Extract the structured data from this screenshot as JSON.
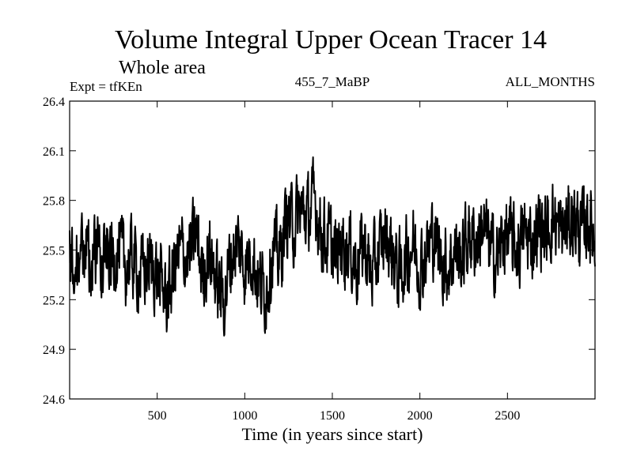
{
  "chart_data": {
    "type": "line",
    "title": "Volume Integral Upper Ocean Tracer 14",
    "subtitle": "Whole area",
    "expt_label": "Expt = tfKEn",
    "center_label": "455_7_MaBP",
    "right_label": "ALL_MONTHS",
    "xlabel": "Time (in years since start)",
    "ylabel": "",
    "xlim": [
      0,
      3000
    ],
    "ylim": [
      24.6,
      26.4
    ],
    "x_ticks": [
      500,
      1000,
      1500,
      2000,
      2500
    ],
    "y_ticks": [
      24.6,
      24.9,
      25.2,
      25.5,
      25.8,
      26.1,
      26.4
    ],
    "y_tick_labels": [
      "24.6",
      "24.9",
      "25.2",
      "25.5",
      "25.8",
      "26.1",
      "26.4"
    ],
    "grid": false,
    "legend": "none",
    "series": [
      {
        "color": "#000000",
        "x": [
          0,
          40,
          80,
          120,
          160,
          200,
          240,
          280,
          320,
          360,
          400,
          440,
          480,
          520,
          560,
          600,
          640,
          680,
          720,
          760,
          800,
          840,
          880,
          920,
          960,
          1000,
          1040,
          1080,
          1120,
          1160,
          1200,
          1240,
          1280,
          1320,
          1360,
          1400,
          1440,
          1480,
          1520,
          1560,
          1600,
          1640,
          1680,
          1720,
          1760,
          1800,
          1840,
          1880,
          1920,
          1960,
          2000,
          2040,
          2080,
          2120,
          2160,
          2200,
          2240,
          2280,
          2320,
          2360,
          2400,
          2440,
          2480,
          2520,
          2560,
          2600,
          2640,
          2680,
          2720,
          2760,
          2800,
          2840,
          2880,
          2920,
          2960,
          3000
        ],
        "y": [
          25.55,
          25.45,
          25.5,
          25.4,
          25.55,
          25.5,
          25.45,
          25.5,
          25.4,
          25.45,
          25.35,
          25.4,
          25.4,
          25.3,
          25.2,
          25.4,
          25.5,
          25.45,
          25.6,
          25.35,
          25.5,
          25.3,
          25.2,
          25.45,
          25.55,
          25.4,
          25.5,
          25.3,
          25.25,
          25.5,
          25.45,
          25.7,
          25.65,
          25.75,
          25.7,
          25.8,
          25.6,
          25.55,
          25.45,
          25.55,
          25.5,
          25.4,
          25.55,
          25.35,
          25.45,
          25.6,
          25.5,
          25.35,
          25.45,
          25.55,
          25.4,
          25.5,
          25.6,
          25.45,
          25.4,
          25.5,
          25.45,
          25.6,
          25.55,
          25.65,
          25.5,
          25.45,
          25.6,
          25.55,
          25.5,
          25.6,
          25.55,
          25.65,
          25.6,
          25.7,
          25.6,
          25.65,
          25.7,
          25.6,
          25.7,
          25.55
        ],
        "noise_amplitude": 0.22
      }
    ]
  }
}
